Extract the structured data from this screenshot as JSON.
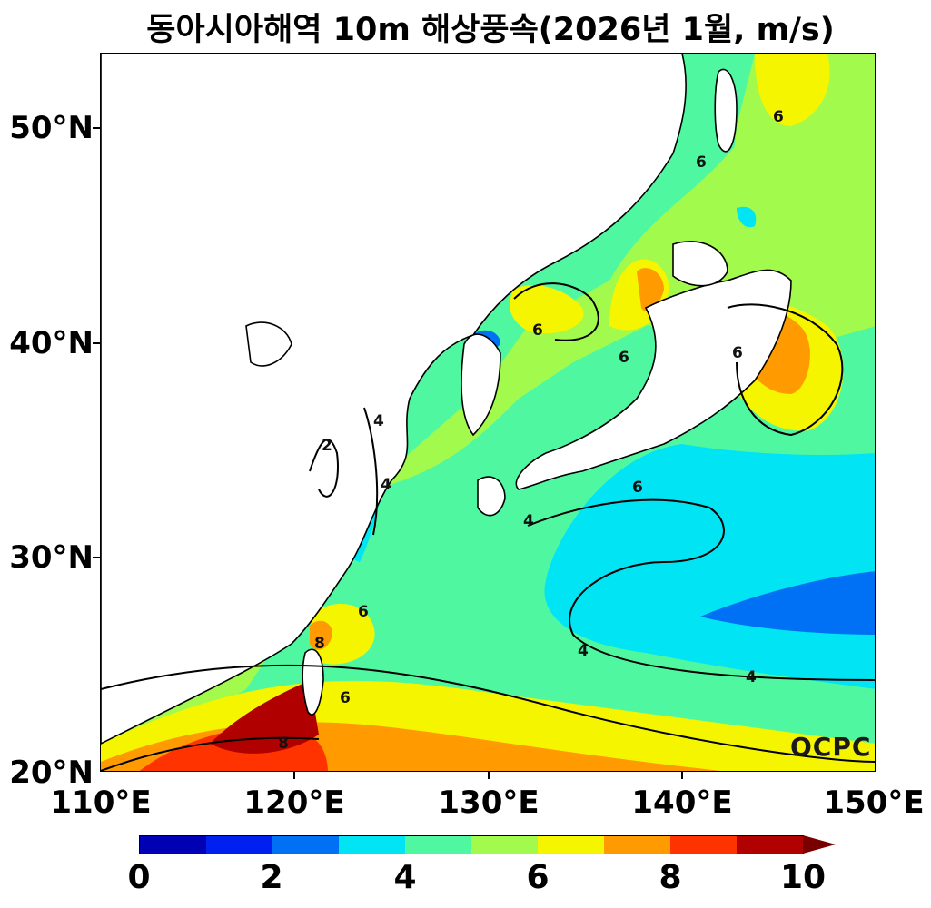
{
  "title": "동아시아해역 10m 해상풍속(2026년 1월, m/s)",
  "watermark": "OCPC",
  "lat_labels": [
    "50°N",
    "40°N",
    "30°N",
    "20°N"
  ],
  "lon_labels": [
    "110°E",
    "120°E",
    "130°E",
    "140°E",
    "150°E"
  ],
  "colorbar": {
    "tick_labels": [
      "0",
      "2",
      "4",
      "6",
      "8",
      "10"
    ],
    "colors": [
      "#0000b4",
      "#0020f0",
      "#0070f5",
      "#00e4f4",
      "#4ff8a0",
      "#a2fa4d",
      "#f5f500",
      "#ff9a00",
      "#ff3300",
      "#b00000"
    ],
    "extend_color": "#7a0000"
  },
  "contour_labels": [
    "2",
    "4",
    "6",
    "8"
  ]
}
